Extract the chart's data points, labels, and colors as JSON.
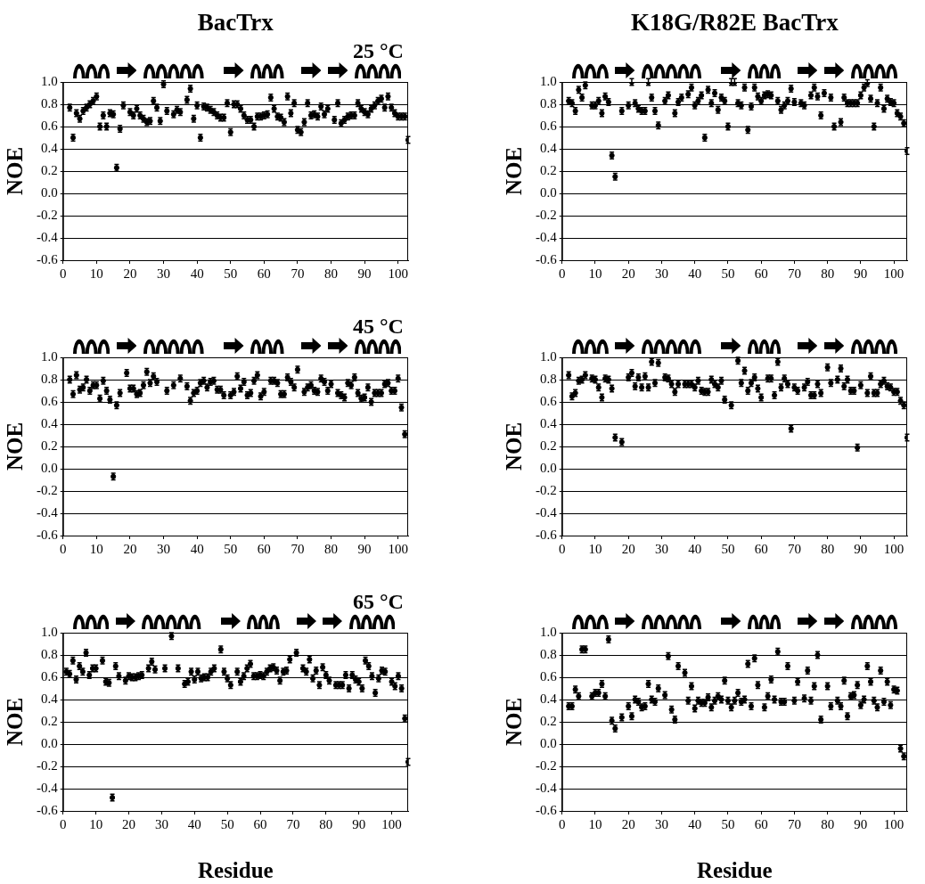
{
  "chart_data": [
    {
      "type": "scatter",
      "title": "BacTrx",
      "subtitle": "25 °C",
      "ylabel": "NOE",
      "xlim": [
        0,
        103
      ],
      "ylim": [
        -0.6,
        1.0
      ],
      "xticks": [
        0,
        10,
        20,
        30,
        40,
        50,
        60,
        70,
        80,
        90,
        100
      ],
      "yticks": [
        {
          "value": 1.0,
          "label": "1.0"
        },
        {
          "value": 0.8,
          "label": "0.8"
        },
        {
          "value": 0.6,
          "label": "0.6"
        },
        {
          "value": 0.4,
          "label": "0.4"
        },
        {
          "value": 0.2,
          "label": "0.2"
        },
        {
          "value": 0,
          "label": "0.0"
        },
        {
          "value": -0.2,
          "label": "-0.2"
        },
        {
          "value": -0.4,
          "label": "-0.4"
        },
        {
          "value": -0.6,
          "label": "-0.6"
        }
      ],
      "grid": "y",
      "marker": "circle",
      "x": [
        2,
        3,
        4,
        5,
        6,
        7,
        8,
        9,
        10,
        11,
        12,
        13,
        14,
        15,
        16,
        17,
        18,
        20,
        21,
        22,
        23,
        24,
        25,
        26,
        27,
        28,
        29,
        30,
        31,
        33,
        34,
        35,
        37,
        38,
        39,
        40,
        41,
        42,
        43,
        44,
        45,
        46,
        47,
        48,
        49,
        50,
        51,
        52,
        53,
        54,
        55,
        56,
        57,
        58,
        59,
        60,
        61,
        62,
        63,
        64,
        65,
        66,
        67,
        68,
        69,
        70,
        71,
        72,
        73,
        74,
        75,
        76,
        77,
        78,
        79,
        81,
        82,
        83,
        84,
        85,
        86,
        87,
        88,
        89,
        90,
        91,
        92,
        93,
        94,
        95,
        96,
        97,
        98,
        99,
        100,
        101,
        102,
        103
      ],
      "series": [
        {
          "color": "#000000",
          "values": [
            0.77,
            0.5,
            0.72,
            0.67,
            0.74,
            0.77,
            0.8,
            0.83,
            0.87,
            0.6,
            0.7,
            0.6,
            0.72,
            0.71,
            0.23,
            0.58,
            0.79,
            0.73,
            0.7,
            0.76,
            0.7,
            0.67,
            0.64,
            0.65,
            0.83,
            0.77,
            0.65,
            0.98,
            0.74,
            0.71,
            0.75,
            0.73,
            0.84,
            0.94,
            0.67,
            0.79,
            0.5,
            0.78,
            0.77,
            0.75,
            0.73,
            0.7,
            0.68,
            0.68,
            0.81,
            0.55,
            0.8,
            0.8,
            0.76,
            0.7,
            0.66,
            0.66,
            0.6,
            0.69,
            0.69,
            0.7,
            0.71,
            0.86,
            0.76,
            0.69,
            0.68,
            0.64,
            0.87,
            0.72,
            0.81,
            0.57,
            0.55,
            0.64,
            0.81,
            0.7,
            0.71,
            0.69,
            0.78,
            0.71,
            0.76,
            0.66,
            0.81,
            0.63,
            0.66,
            0.69,
            0.7,
            0.7,
            0.81,
            0.76,
            0.73,
            0.71,
            0.76,
            0.79,
            0.83,
            0.85,
            0.77,
            0.87,
            0.77,
            0.72,
            0.69,
            0.69,
            0.69,
            0.48
          ],
          "errors": [
            0.03,
            0.03,
            0.03,
            0.03,
            0.03,
            0.03,
            0.03,
            0.03,
            0.03,
            0.03,
            0.03,
            0.03,
            0.03,
            0.03,
            0.03,
            0.03,
            0.03,
            0.03,
            0.03,
            0.03,
            0.03,
            0.03,
            0.03,
            0.03,
            0.03,
            0.03,
            0.03,
            0.03,
            0.03,
            0.03,
            0.03,
            0.03,
            0.03,
            0.03,
            0.03,
            0.03,
            0.03,
            0.03,
            0.03,
            0.03,
            0.03,
            0.03,
            0.03,
            0.03,
            0.03,
            0.03,
            0.03,
            0.03,
            0.03,
            0.03,
            0.03,
            0.03,
            0.03,
            0.03,
            0.03,
            0.03,
            0.03,
            0.03,
            0.03,
            0.03,
            0.03,
            0.03,
            0.03,
            0.03,
            0.03,
            0.03,
            0.03,
            0.03,
            0.03,
            0.03,
            0.03,
            0.03,
            0.03,
            0.03,
            0.03,
            0.03,
            0.03,
            0.03,
            0.03,
            0.03,
            0.03,
            0.03,
            0.03,
            0.03,
            0.03,
            0.03,
            0.03,
            0.03,
            0.03,
            0.03,
            0.03,
            0.03,
            0.03,
            0.03,
            0.03,
            0.03,
            0.03,
            0.03
          ]
        }
      ]
    },
    {
      "type": "scatter",
      "title": "K18G/R82E BacTrx",
      "ylabel": "NOE",
      "xlim": [
        0,
        104
      ],
      "ylim": [
        -0.6,
        1.0
      ],
      "xticks": [
        0,
        10,
        20,
        30,
        40,
        50,
        60,
        70,
        80,
        90,
        100
      ],
      "yticks": [
        {
          "value": 1.0,
          "label": "1.0"
        },
        {
          "value": 0.8,
          "label": "0.8"
        },
        {
          "value": 0.6,
          "label": "0.6"
        },
        {
          "value": 0.4,
          "label": "0.4"
        },
        {
          "value": 0.2,
          "label": "0.2"
        },
        {
          "value": 0,
          "label": "0.0"
        },
        {
          "value": -0.2,
          "label": "-0.2"
        },
        {
          "value": -0.4,
          "label": "-0.4"
        },
        {
          "value": -0.6,
          "label": "-0.6"
        }
      ],
      "grid": "y",
      "marker": "circle",
      "x": [
        2,
        3,
        4,
        5,
        6,
        7,
        9,
        10,
        11,
        12,
        13,
        14,
        15,
        16,
        18,
        20,
        21,
        22,
        23,
        24,
        25,
        26,
        27,
        28,
        29,
        31,
        32,
        34,
        35,
        36,
        38,
        39,
        40,
        41,
        42,
        43,
        44,
        45,
        46,
        47,
        48,
        49,
        50,
        51,
        52,
        53,
        54,
        55,
        56,
        57,
        58,
        59,
        60,
        61,
        62,
        63,
        65,
        66,
        67,
        68,
        69,
        70,
        72,
        73,
        75,
        76,
        77,
        78,
        79,
        81,
        82,
        84,
        85,
        86,
        87,
        88,
        89,
        90,
        91,
        92,
        93,
        94,
        95,
        96,
        97,
        98,
        99,
        100,
        101,
        102,
        103,
        104
      ],
      "series": [
        {
          "color": "#000000",
          "values": [
            0.83,
            0.81,
            0.74,
            0.93,
            0.86,
            0.97,
            0.79,
            0.79,
            0.83,
            0.72,
            0.87,
            0.82,
            0.34,
            0.15,
            0.74,
            0.79,
            1.0,
            0.81,
            0.76,
            0.74,
            0.74,
            1.0,
            0.86,
            0.74,
            0.61,
            0.83,
            0.88,
            0.72,
            0.82,
            0.86,
            0.89,
            0.95,
            0.79,
            0.83,
            0.88,
            0.5,
            0.93,
            0.81,
            0.9,
            0.75,
            0.86,
            0.83,
            0.6,
            1.0,
            1.0,
            0.81,
            0.79,
            0.95,
            0.57,
            0.78,
            0.95,
            0.87,
            0.83,
            0.88,
            0.89,
            0.88,
            0.83,
            0.75,
            0.79,
            0.83,
            0.94,
            0.82,
            0.81,
            0.79,
            0.88,
            0.95,
            0.87,
            0.7,
            0.9,
            0.86,
            0.6,
            0.64,
            0.86,
            0.81,
            0.81,
            0.81,
            0.81,
            0.88,
            0.95,
            0.99,
            0.85,
            0.6,
            0.81,
            0.95,
            0.76,
            0.85,
            0.82,
            0.81,
            0.72,
            0.69,
            0.63,
            0.38
          ],
          "errors": [
            0.03,
            0.03,
            0.03,
            0.03,
            0.03,
            0.03,
            0.03,
            0.03,
            0.03,
            0.03,
            0.03,
            0.03,
            0.03,
            0.03,
            0.03,
            0.03,
            0.03,
            0.03,
            0.03,
            0.03,
            0.03,
            0.03,
            0.03,
            0.03,
            0.03,
            0.03,
            0.03,
            0.03,
            0.03,
            0.03,
            0.03,
            0.03,
            0.03,
            0.03,
            0.03,
            0.03,
            0.03,
            0.03,
            0.03,
            0.03,
            0.03,
            0.03,
            0.03,
            0.03,
            0.03,
            0.03,
            0.03,
            0.03,
            0.03,
            0.03,
            0.03,
            0.03,
            0.03,
            0.03,
            0.03,
            0.03,
            0.03,
            0.03,
            0.03,
            0.03,
            0.03,
            0.03,
            0.03,
            0.03,
            0.03,
            0.03,
            0.03,
            0.03,
            0.03,
            0.03,
            0.03,
            0.03,
            0.03,
            0.03,
            0.03,
            0.03,
            0.03,
            0.03,
            0.03,
            0.03,
            0.03,
            0.03,
            0.03,
            0.03,
            0.03,
            0.03,
            0.03,
            0.03,
            0.03,
            0.03,
            0.03,
            0.03
          ]
        }
      ]
    },
    {
      "type": "scatter",
      "subtitle": "45 °C",
      "ylabel": "NOE",
      "xlim": [
        0,
        103
      ],
      "ylim": [
        -0.6,
        1.0
      ],
      "xticks": [
        0,
        10,
        20,
        30,
        40,
        50,
        60,
        70,
        80,
        90,
        100
      ],
      "yticks": [
        {
          "value": 1.0,
          "label": "1.0"
        },
        {
          "value": 0.8,
          "label": "0.8"
        },
        {
          "value": 0.6,
          "label": "0.6"
        },
        {
          "value": 0.4,
          "label": "0.4"
        },
        {
          "value": 0.2,
          "label": "0.2"
        },
        {
          "value": 0,
          "label": "0.0"
        },
        {
          "value": -0.2,
          "label": "-0.2"
        },
        {
          "value": -0.4,
          "label": "-0.4"
        },
        {
          "value": -0.6,
          "label": "-0.6"
        }
      ],
      "grid": "y",
      "marker": "circle",
      "x": [
        2,
        3,
        4,
        5,
        6,
        7,
        8,
        9,
        10,
        11,
        12,
        13,
        14,
        15,
        16,
        17,
        19,
        20,
        21,
        22,
        23,
        24,
        25,
        26,
        27,
        28,
        31,
        33,
        35,
        37,
        38,
        39,
        40,
        41,
        42,
        43,
        44,
        45,
        46,
        47,
        48,
        50,
        51,
        52,
        53,
        54,
        55,
        56,
        57,
        58,
        59,
        60,
        62,
        63,
        64,
        65,
        66,
        67,
        68,
        69,
        70,
        72,
        73,
        74,
        75,
        76,
        77,
        78,
        79,
        80,
        82,
        83,
        84,
        85,
        86,
        87,
        88,
        89,
        90,
        91,
        92,
        93,
        94,
        95,
        96,
        97,
        98,
        99,
        100,
        101,
        102
      ],
      "series": [
        {
          "color": "#000000",
          "values": [
            0.8,
            0.67,
            0.84,
            0.71,
            0.73,
            0.8,
            0.7,
            0.75,
            0.75,
            0.63,
            0.79,
            0.7,
            0.62,
            -0.07,
            0.57,
            0.68,
            0.86,
            0.72,
            0.72,
            0.67,
            0.68,
            0.75,
            0.87,
            0.77,
            0.83,
            0.78,
            0.7,
            0.75,
            0.81,
            0.74,
            0.61,
            0.68,
            0.7,
            0.77,
            0.79,
            0.73,
            0.78,
            0.79,
            0.71,
            0.71,
            0.66,
            0.66,
            0.69,
            0.83,
            0.72,
            0.78,
            0.66,
            0.68,
            0.79,
            0.84,
            0.65,
            0.69,
            0.79,
            0.79,
            0.77,
            0.67,
            0.67,
            0.82,
            0.78,
            0.73,
            0.89,
            0.69,
            0.73,
            0.75,
            0.7,
            0.69,
            0.81,
            0.78,
            0.7,
            0.76,
            0.68,
            0.66,
            0.64,
            0.77,
            0.75,
            0.82,
            0.68,
            0.63,
            0.64,
            0.73,
            0.6,
            0.68,
            0.68,
            0.68,
            0.76,
            0.77,
            0.7,
            0.7,
            0.81,
            0.55,
            0.31
          ],
          "errors": [
            0.03,
            0.03,
            0.03,
            0.03,
            0.03,
            0.03,
            0.03,
            0.03,
            0.03,
            0.03,
            0.03,
            0.03,
            0.03,
            0.03,
            0.03,
            0.03,
            0.03,
            0.03,
            0.03,
            0.03,
            0.03,
            0.03,
            0.03,
            0.03,
            0.03,
            0.03,
            0.03,
            0.03,
            0.03,
            0.03,
            0.03,
            0.03,
            0.03,
            0.03,
            0.03,
            0.03,
            0.03,
            0.03,
            0.03,
            0.03,
            0.03,
            0.03,
            0.03,
            0.03,
            0.03,
            0.03,
            0.03,
            0.03,
            0.03,
            0.03,
            0.03,
            0.03,
            0.03,
            0.03,
            0.03,
            0.03,
            0.03,
            0.03,
            0.03,
            0.03,
            0.03,
            0.03,
            0.03,
            0.03,
            0.03,
            0.03,
            0.03,
            0.03,
            0.03,
            0.03,
            0.03,
            0.03,
            0.03,
            0.03,
            0.03,
            0.03,
            0.03,
            0.03,
            0.03,
            0.03,
            0.03,
            0.03,
            0.03,
            0.03,
            0.03,
            0.03,
            0.03,
            0.03,
            0.03,
            0.03,
            0.03
          ]
        }
      ]
    },
    {
      "type": "scatter",
      "ylabel": "NOE",
      "xlim": [
        0,
        104
      ],
      "ylim": [
        -0.6,
        1.0
      ],
      "xticks": [
        0,
        10,
        20,
        30,
        40,
        50,
        60,
        70,
        80,
        90,
        100
      ],
      "yticks": [
        {
          "value": 1.0,
          "label": "1.0"
        },
        {
          "value": 0.8,
          "label": "0.8"
        },
        {
          "value": 0.6,
          "label": "0.6"
        },
        {
          "value": 0.4,
          "label": "0.4"
        },
        {
          "value": 0.2,
          "label": "0.2"
        },
        {
          "value": 0,
          "label": "0.0"
        },
        {
          "value": -0.2,
          "label": "-0.2"
        },
        {
          "value": -0.4,
          "label": "-0.4"
        },
        {
          "value": -0.6,
          "label": "-0.6"
        }
      ],
      "grid": "y",
      "marker": "circle",
      "x": [
        2,
        3,
        4,
        5,
        6,
        7,
        9,
        10,
        11,
        12,
        13,
        14,
        15,
        16,
        18,
        20,
        21,
        22,
        23,
        24,
        25,
        26,
        27,
        28,
        29,
        31,
        32,
        33,
        34,
        35,
        37,
        38,
        39,
        40,
        41,
        42,
        43,
        44,
        45,
        46,
        47,
        48,
        49,
        51,
        53,
        54,
        55,
        56,
        57,
        58,
        59,
        60,
        62,
        63,
        64,
        65,
        66,
        67,
        68,
        69,
        70,
        71,
        73,
        74,
        75,
        76,
        77,
        78,
        80,
        81,
        83,
        84,
        85,
        86,
        87,
        88,
        89,
        90,
        92,
        93,
        94,
        95,
        96,
        97,
        98,
        99,
        100,
        101,
        102,
        103,
        104
      ],
      "series": [
        {
          "color": "#000000",
          "values": [
            0.84,
            0.65,
            0.68,
            0.79,
            0.8,
            0.84,
            0.81,
            0.8,
            0.73,
            0.64,
            0.81,
            0.8,
            0.72,
            0.28,
            0.24,
            0.82,
            0.86,
            0.74,
            0.82,
            0.73,
            0.83,
            0.73,
            0.96,
            0.77,
            0.95,
            0.82,
            0.81,
            0.76,
            0.69,
            0.76,
            0.76,
            0.76,
            0.76,
            0.73,
            0.79,
            0.7,
            0.69,
            0.69,
            0.8,
            0.76,
            0.73,
            0.79,
            0.62,
            0.57,
            0.97,
            0.77,
            0.88,
            0.7,
            0.77,
            0.82,
            0.72,
            0.64,
            0.81,
            0.81,
            0.66,
            0.96,
            0.73,
            0.81,
            0.76,
            0.36,
            0.73,
            0.7,
            0.73,
            0.78,
            0.66,
            0.66,
            0.76,
            0.68,
            0.91,
            0.77,
            0.8,
            0.9,
            0.74,
            0.8,
            0.7,
            0.7,
            0.19,
            0.75,
            0.68,
            0.83,
            0.68,
            0.68,
            0.76,
            0.79,
            0.74,
            0.73,
            0.69,
            0.69,
            0.61,
            0.57,
            0.28
          ],
          "errors": [
            0.03,
            0.03,
            0.03,
            0.03,
            0.03,
            0.03,
            0.03,
            0.03,
            0.03,
            0.03,
            0.03,
            0.03,
            0.03,
            0.03,
            0.03,
            0.03,
            0.03,
            0.03,
            0.03,
            0.03,
            0.03,
            0.03,
            0.03,
            0.03,
            0.03,
            0.03,
            0.03,
            0.03,
            0.03,
            0.03,
            0.03,
            0.03,
            0.03,
            0.03,
            0.03,
            0.03,
            0.03,
            0.03,
            0.03,
            0.03,
            0.03,
            0.03,
            0.03,
            0.03,
            0.03,
            0.03,
            0.03,
            0.03,
            0.03,
            0.03,
            0.03,
            0.03,
            0.03,
            0.03,
            0.03,
            0.03,
            0.03,
            0.03,
            0.03,
            0.03,
            0.03,
            0.03,
            0.03,
            0.03,
            0.03,
            0.03,
            0.03,
            0.03,
            0.03,
            0.03,
            0.03,
            0.03,
            0.03,
            0.03,
            0.03,
            0.03,
            0.03,
            0.03,
            0.03,
            0.03,
            0.03,
            0.03,
            0.03,
            0.03,
            0.03,
            0.03,
            0.03,
            0.03,
            0.03,
            0.03,
            0.03
          ]
        }
      ]
    },
    {
      "type": "scatter",
      "subtitle": "65 °C",
      "xlabel": "Residue",
      "ylabel": "NOE",
      "xlim": [
        0,
        105
      ],
      "ylim": [
        -0.6,
        1.0
      ],
      "xticks": [
        0,
        10,
        20,
        30,
        40,
        50,
        60,
        70,
        80,
        90,
        100
      ],
      "yticks": [
        {
          "value": 1.0,
          "label": "1.0"
        },
        {
          "value": 0.8,
          "label": "0.8"
        },
        {
          "value": 0.6,
          "label": "0.6"
        },
        {
          "value": 0.4,
          "label": "0.4"
        },
        {
          "value": 0.2,
          "label": "0.2"
        },
        {
          "value": 0,
          "label": "0.0"
        },
        {
          "value": -0.2,
          "label": "-0.2"
        },
        {
          "value": -0.4,
          "label": "-0.4"
        },
        {
          "value": -0.6,
          "label": "-0.6"
        }
      ],
      "grid": "y",
      "marker": "circle",
      "x": [
        1,
        2,
        3,
        4,
        5,
        6,
        7,
        8,
        9,
        10,
        12,
        13,
        14,
        15,
        16,
        17,
        19,
        20,
        21,
        22,
        23,
        24,
        26,
        27,
        28,
        31,
        33,
        35,
        37,
        38,
        39,
        40,
        41,
        42,
        43,
        44,
        45,
        46,
        48,
        49,
        50,
        51,
        53,
        54,
        55,
        56,
        57,
        58,
        59,
        60,
        61,
        62,
        63,
        64,
        65,
        66,
        67,
        68,
        69,
        71,
        73,
        74,
        75,
        76,
        77,
        78,
        79,
        80,
        81,
        83,
        84,
        85,
        86,
        87,
        88,
        89,
        90,
        91,
        92,
        93,
        94,
        95,
        96,
        97,
        98,
        100,
        101,
        102,
        103,
        104,
        105
      ],
      "series": [
        {
          "color": "#000000",
          "values": [
            0.65,
            0.63,
            0.75,
            0.58,
            0.7,
            0.65,
            0.82,
            0.62,
            0.68,
            0.68,
            0.75,
            0.56,
            0.55,
            -0.48,
            0.7,
            0.61,
            0.57,
            0.61,
            0.6,
            0.6,
            0.61,
            0.62,
            0.68,
            0.74,
            0.67,
            0.68,
            0.97,
            0.68,
            0.54,
            0.56,
            0.65,
            0.58,
            0.65,
            0.59,
            0.6,
            0.6,
            0.65,
            0.68,
            0.85,
            0.65,
            0.59,
            0.53,
            0.65,
            0.56,
            0.61,
            0.68,
            0.72,
            0.61,
            0.61,
            0.62,
            0.61,
            0.65,
            0.68,
            0.69,
            0.66,
            0.57,
            0.65,
            0.66,
            0.76,
            0.82,
            0.68,
            0.65,
            0.76,
            0.59,
            0.66,
            0.53,
            0.69,
            0.62,
            0.57,
            0.53,
            0.53,
            0.53,
            0.62,
            0.5,
            0.62,
            0.58,
            0.56,
            0.5,
            0.75,
            0.7,
            0.61,
            0.46,
            0.59,
            0.66,
            0.65,
            0.56,
            0.52,
            0.61,
            0.5,
            0.23,
            -0.16
          ],
          "errors": [
            0.03,
            0.03,
            0.03,
            0.03,
            0.03,
            0.03,
            0.03,
            0.03,
            0.03,
            0.03,
            0.03,
            0.03,
            0.03,
            0.03,
            0.03,
            0.03,
            0.03,
            0.03,
            0.03,
            0.03,
            0.03,
            0.03,
            0.03,
            0.03,
            0.03,
            0.03,
            0.03,
            0.03,
            0.03,
            0.03,
            0.03,
            0.03,
            0.03,
            0.03,
            0.03,
            0.03,
            0.03,
            0.03,
            0.03,
            0.03,
            0.03,
            0.03,
            0.03,
            0.03,
            0.03,
            0.03,
            0.03,
            0.03,
            0.03,
            0.03,
            0.03,
            0.03,
            0.03,
            0.03,
            0.03,
            0.03,
            0.03,
            0.03,
            0.03,
            0.03,
            0.03,
            0.03,
            0.03,
            0.03,
            0.03,
            0.03,
            0.03,
            0.03,
            0.03,
            0.03,
            0.03,
            0.03,
            0.03,
            0.03,
            0.03,
            0.03,
            0.03,
            0.03,
            0.03,
            0.03,
            0.03,
            0.03,
            0.03,
            0.03,
            0.03,
            0.03,
            0.03,
            0.03,
            0.03,
            0.03,
            0.03
          ]
        }
      ]
    },
    {
      "type": "scatter",
      "xlabel": "Residue",
      "ylabel": "NOE",
      "xlim": [
        0,
        104
      ],
      "ylim": [
        -0.6,
        1.0
      ],
      "xticks": [
        0,
        10,
        20,
        30,
        40,
        50,
        60,
        70,
        80,
        90,
        100
      ],
      "yticks": [
        {
          "value": 1.0,
          "label": "1.0"
        },
        {
          "value": 0.8,
          "label": "0.8"
        },
        {
          "value": 0.6,
          "label": "0.6"
        },
        {
          "value": 0.4,
          "label": "0.4"
        },
        {
          "value": 0.2,
          "label": "0.2"
        },
        {
          "value": 0,
          "label": "0.0"
        },
        {
          "value": -0.2,
          "label": "-0.2"
        },
        {
          "value": -0.4,
          "label": "-0.4"
        },
        {
          "value": -0.6,
          "label": "-0.6"
        }
      ],
      "grid": "y",
      "marker": "circle",
      "x": [
        2,
        3,
        4,
        5,
        6,
        7,
        9,
        10,
        11,
        12,
        13,
        14,
        15,
        16,
        18,
        20,
        21,
        22,
        23,
        24,
        25,
        26,
        27,
        28,
        29,
        31,
        32,
        33,
        34,
        35,
        37,
        38,
        39,
        40,
        41,
        42,
        43,
        44,
        45,
        46,
        47,
        48,
        49,
        50,
        51,
        52,
        53,
        54,
        55,
        56,
        57,
        58,
        59,
        61,
        62,
        63,
        64,
        65,
        66,
        67,
        68,
        70,
        71,
        73,
        74,
        75,
        76,
        77,
        78,
        80,
        81,
        83,
        84,
        85,
        86,
        87,
        88,
        89,
        90,
        91,
        92,
        93,
        94,
        95,
        96,
        97,
        98,
        99,
        100,
        101,
        102,
        103
      ],
      "series": [
        {
          "color": "#000000",
          "values": [
            0.34,
            0.34,
            0.49,
            0.43,
            0.85,
            0.85,
            0.43,
            0.46,
            0.46,
            0.54,
            0.43,
            0.94,
            0.21,
            0.14,
            0.24,
            0.34,
            0.25,
            0.4,
            0.38,
            0.33,
            0.34,
            0.54,
            0.4,
            0.38,
            0.5,
            0.44,
            0.79,
            0.31,
            0.22,
            0.7,
            0.64,
            0.39,
            0.52,
            0.32,
            0.39,
            0.37,
            0.37,
            0.42,
            0.33,
            0.39,
            0.43,
            0.4,
            0.57,
            0.39,
            0.33,
            0.39,
            0.46,
            0.38,
            0.4,
            0.72,
            0.34,
            0.77,
            0.53,
            0.33,
            0.43,
            0.58,
            0.4,
            0.83,
            0.38,
            0.38,
            0.7,
            0.39,
            0.56,
            0.41,
            0.66,
            0.39,
            0.52,
            0.8,
            0.22,
            0.52,
            0.34,
            0.39,
            0.34,
            0.57,
            0.25,
            0.43,
            0.44,
            0.53,
            0.35,
            0.4,
            0.7,
            0.56,
            0.39,
            0.33,
            0.66,
            0.38,
            0.56,
            0.35,
            0.49,
            0.48,
            -0.04,
            -0.11
          ],
          "errors": [
            0.03,
            0.03,
            0.03,
            0.03,
            0.03,
            0.03,
            0.03,
            0.03,
            0.03,
            0.03,
            0.03,
            0.03,
            0.03,
            0.03,
            0.03,
            0.03,
            0.03,
            0.03,
            0.03,
            0.03,
            0.03,
            0.03,
            0.03,
            0.03,
            0.03,
            0.03,
            0.03,
            0.03,
            0.03,
            0.03,
            0.03,
            0.03,
            0.03,
            0.03,
            0.03,
            0.03,
            0.03,
            0.03,
            0.03,
            0.03,
            0.03,
            0.03,
            0.03,
            0.03,
            0.03,
            0.03,
            0.03,
            0.03,
            0.03,
            0.03,
            0.03,
            0.03,
            0.03,
            0.03,
            0.03,
            0.03,
            0.03,
            0.03,
            0.03,
            0.03,
            0.03,
            0.03,
            0.03,
            0.03,
            0.03,
            0.03,
            0.03,
            0.03,
            0.03,
            0.03,
            0.03,
            0.03,
            0.03,
            0.03,
            0.03,
            0.03,
            0.03,
            0.03,
            0.03,
            0.03,
            0.03,
            0.03,
            0.03,
            0.03,
            0.03,
            0.03,
            0.03,
            0.03,
            0.03,
            0.03,
            0.03,
            0.03
          ]
        }
      ]
    }
  ]
}
